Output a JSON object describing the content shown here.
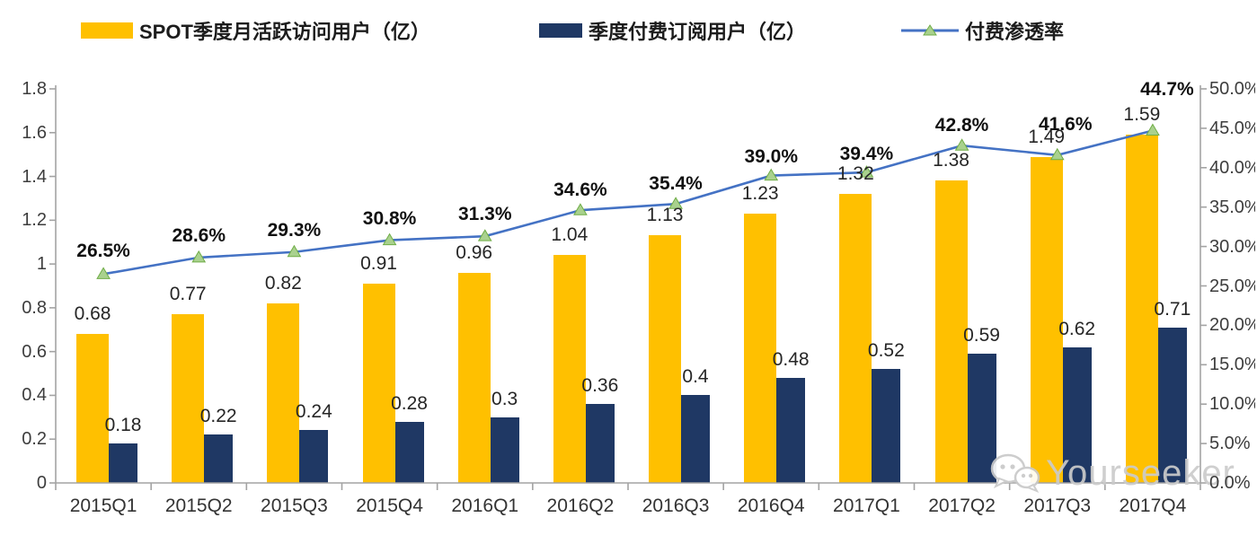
{
  "legend": {
    "items": [
      {
        "label": "SPOT季度月活跃访问用户（亿）",
        "swatch": "bar",
        "color": "#FFC000"
      },
      {
        "label": "季度付费订阅用户（亿）",
        "swatch": "bar",
        "color": "#1F3864"
      },
      {
        "label": "付费渗透率",
        "swatch": "line-marker",
        "color": "#4472C4",
        "marker_color": "#A9D18E",
        "marker_edge": "#70AD47"
      }
    ]
  },
  "chart_data": {
    "type": "combo",
    "legend_position": "top",
    "grid": false,
    "categories": [
      "2015Q1",
      "2015Q2",
      "2015Q3",
      "2015Q4",
      "2016Q1",
      "2016Q2",
      "2016Q3",
      "2016Q4",
      "2017Q1",
      "2017Q2",
      "2017Q3",
      "2017Q4"
    ],
    "series": [
      {
        "name": "SPOT季度月活跃访问用户（亿）",
        "type": "bar",
        "axis": "left",
        "color": "#FFC000",
        "values": [
          0.68,
          0.77,
          0.82,
          0.91,
          0.96,
          1.04,
          1.13,
          1.23,
          1.32,
          1.38,
          1.49,
          1.59
        ]
      },
      {
        "name": "季度付费订阅用户（亿）",
        "type": "bar",
        "axis": "left",
        "color": "#1F3864",
        "values": [
          0.18,
          0.22,
          0.24,
          0.28,
          0.3,
          0.36,
          0.4,
          0.48,
          0.52,
          0.59,
          0.62,
          0.71
        ]
      },
      {
        "name": "付费渗透率",
        "type": "line",
        "axis": "right",
        "color": "#4472C4",
        "marker": "triangle",
        "marker_color": "#A9D18E",
        "marker_edge": "#70AD47",
        "values": [
          26.5,
          28.6,
          29.3,
          30.8,
          31.3,
          34.6,
          35.4,
          39.0,
          39.4,
          42.8,
          41.6,
          44.7
        ],
        "labels": [
          "26.5%",
          "28.6%",
          "29.3%",
          "30.8%",
          "31.3%",
          "34.6%",
          "35.4%",
          "39.0%",
          "39.4%",
          "42.8%",
          "41.6%",
          "44.7%"
        ],
        "label_dy": [
          -37,
          -36,
          -36,
          -36,
          -36,
          -34,
          -34,
          -33,
          -32,
          -34,
          -46,
          -58
        ],
        "label_dx": [
          0,
          0,
          0,
          0,
          0,
          0,
          0,
          0,
          0,
          0,
          9,
          16
        ]
      }
    ],
    "left_axis": {
      "min": 0,
      "max": 1.8,
      "step": 0.2,
      "labels": [
        "0",
        "0.2",
        "0.4",
        "0.6",
        "0.8",
        "1",
        "1.2",
        "1.4",
        "1.6",
        "1.8"
      ]
    },
    "right_axis": {
      "min": 0,
      "max": 50,
      "step": 5,
      "labels": [
        "0.0%",
        "5.0%",
        "10.0%",
        "15.0%",
        "20.0%",
        "25.0%",
        "30.0%",
        "35.0%",
        "40.0%",
        "45.0%",
        "50.0%"
      ]
    }
  },
  "watermark": {
    "text": "Yourseeker",
    "icon": "wechat-icon"
  },
  "colors": {
    "axis": "#A3A3A3"
  }
}
